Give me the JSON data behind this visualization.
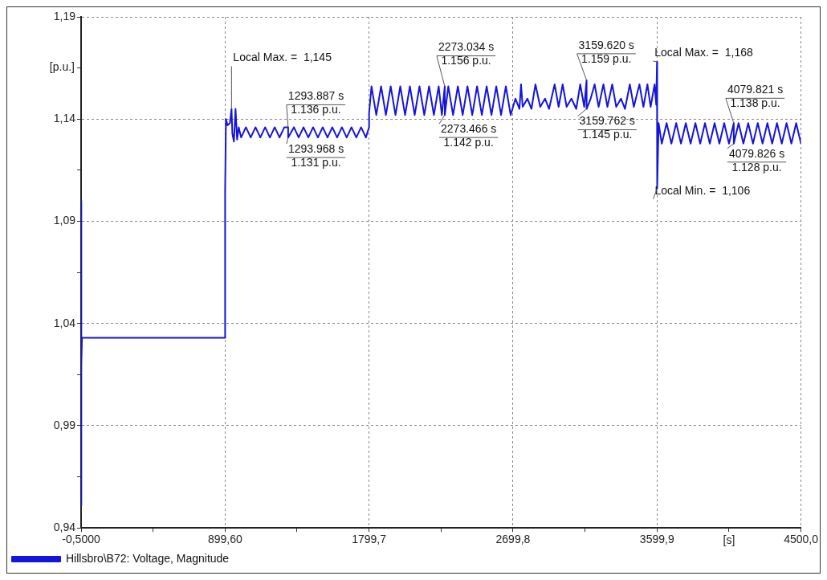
{
  "chart_data": {
    "type": "line",
    "xlabel": "[s]",
    "ylabel": "[p.u.]",
    "legend": "bottom left",
    "grid": true,
    "marker": "none",
    "line_style": "solid",
    "xlim": [
      -0.5,
      4500
    ],
    "xticks": [
      {
        "value": -0.5,
        "label": "-0,5000"
      },
      {
        "value": 449.55,
        "label": null
      },
      {
        "value": 899.6,
        "label": "899,60"
      },
      {
        "value": 1349.65,
        "label": null
      },
      {
        "value": 1799.7,
        "label": "1799,7"
      },
      {
        "value": 2249.75,
        "label": null
      },
      {
        "value": 2699.8,
        "label": "2699,8"
      },
      {
        "value": 3149.85,
        "label": null
      },
      {
        "value": 3599.9,
        "label": "3599,9"
      },
      {
        "value": 4049.95,
        "label": null
      },
      {
        "value": 4500,
        "label": "4500,0"
      }
    ],
    "ylim": [
      0.94,
      1.19
    ],
    "yticks": [
      {
        "value": 0.94,
        "label": "0,94"
      },
      {
        "value": 0.965,
        "label": null
      },
      {
        "value": 0.99,
        "label": "0,99"
      },
      {
        "value": 1.015,
        "label": null
      },
      {
        "value": 1.04,
        "label": "1,04"
      },
      {
        "value": 1.065,
        "label": null
      },
      {
        "value": 1.09,
        "label": "1,09"
      },
      {
        "value": 1.115,
        "label": null
      },
      {
        "value": 1.14,
        "label": "1,14"
      },
      {
        "value": 1.165,
        "label": null
      },
      {
        "value": 1.19,
        "label": "1,19"
      }
    ],
    "annotations": [
      {
        "text": "Local Max. =  1,145",
        "x": 940,
        "y": 1.145
      },
      {
        "text": "1293.887 s\n1.136 p.u.",
        "x": 1293.887,
        "y": 1.136
      },
      {
        "text": "1293.968 s\n1.131 p.u.",
        "x": 1293.968,
        "y": 1.131
      },
      {
        "text": "2273.034 s\n1.156 p.u.",
        "x": 2273.034,
        "y": 1.156
      },
      {
        "text": "2273.466 s\n1.142 p.u.",
        "x": 2273.466,
        "y": 1.142
      },
      {
        "text": "3159.620 s\n1.159 p.u.",
        "x": 3159.62,
        "y": 1.159
      },
      {
        "text": "3159.762 s\n1.145 p.u.",
        "x": 3159.762,
        "y": 1.145
      },
      {
        "text": "Local Max. =  1,168",
        "x": 3599.9,
        "y": 1.168
      },
      {
        "text": "4079.821 s\n1.138 p.u.",
        "x": 4079.821,
        "y": 1.138
      },
      {
        "text": "4079.826 s\n1.128 p.u.",
        "x": 4079.826,
        "y": 1.128
      },
      {
        "text": "Local Min. =  1,106",
        "x": 3601,
        "y": 1.106
      }
    ],
    "series": [
      {
        "name": "Hillsbro\\B72: Voltage, Magnitude",
        "color": "#1414dc",
        "x": [
          -0.5,
          0,
          2,
          5,
          899.6,
          900,
          905,
          915,
          930,
          940,
          945,
          955,
          965,
          975,
          985,
          1000,
          1030,
          1060,
          1090,
          1120,
          1150,
          1180,
          1210,
          1240,
          1270,
          1293.887,
          1293.968,
          1330,
          1360,
          1390,
          1420,
          1450,
          1480,
          1510,
          1540,
          1570,
          1600,
          1630,
          1660,
          1690,
          1720,
          1750,
          1780,
          1799.7,
          1800,
          1815,
          1845,
          1875,
          1905,
          1935,
          1965,
          1995,
          2025,
          2055,
          2085,
          2115,
          2145,
          2175,
          2205,
          2235,
          2255,
          2273.034,
          2273.466,
          2295,
          2325,
          2355,
          2385,
          2415,
          2445,
          2475,
          2505,
          2535,
          2565,
          2595,
          2625,
          2655,
          2685,
          2700,
          2715,
          2740,
          2750,
          2760,
          2790,
          2815,
          2840,
          2870,
          2900,
          2925,
          2960,
          2985,
          3010,
          3035,
          3065,
          3095,
          3120,
          3145,
          3159.62,
          3159.762,
          3185,
          3210,
          3235,
          3265,
          3290,
          3320,
          3345,
          3375,
          3400,
          3430,
          3455,
          3490,
          3515,
          3540,
          3560,
          3585,
          3595,
          3599.9,
          3601,
          3610,
          3630,
          3660,
          3690,
          3720,
          3750,
          3780,
          3810,
          3840,
          3870,
          3900,
          3930,
          3960,
          3990,
          4020,
          4050,
          4079.821,
          4079.826,
          4110,
          4140,
          4170,
          4200,
          4230,
          4260,
          4290,
          4320,
          4350,
          4380,
          4410,
          4440,
          4470,
          4500
        ],
        "values": [
          1.1,
          0.951,
          1.02,
          1.033,
          1.033,
          1.105,
          1.14,
          1.137,
          1.138,
          1.145,
          1.133,
          1.129,
          1.145,
          1.13,
          1.136,
          1.131,
          1.136,
          1.131,
          1.136,
          1.131,
          1.136,
          1.131,
          1.136,
          1.131,
          1.136,
          1.136,
          1.131,
          1.136,
          1.131,
          1.136,
          1.131,
          1.136,
          1.131,
          1.136,
          1.131,
          1.136,
          1.131,
          1.136,
          1.131,
          1.136,
          1.131,
          1.136,
          1.131,
          1.136,
          1.143,
          1.156,
          1.142,
          1.156,
          1.142,
          1.156,
          1.142,
          1.156,
          1.142,
          1.156,
          1.142,
          1.156,
          1.142,
          1.156,
          1.142,
          1.156,
          1.142,
          1.156,
          1.142,
          1.156,
          1.142,
          1.156,
          1.142,
          1.156,
          1.142,
          1.156,
          1.142,
          1.156,
          1.142,
          1.156,
          1.142,
          1.156,
          1.142,
          1.146,
          1.15,
          1.145,
          1.157,
          1.146,
          1.15,
          1.145,
          1.157,
          1.146,
          1.15,
          1.145,
          1.157,
          1.146,
          1.157,
          1.146,
          1.15,
          1.145,
          1.157,
          1.146,
          1.159,
          1.145,
          1.15,
          1.157,
          1.146,
          1.157,
          1.146,
          1.157,
          1.146,
          1.15,
          1.145,
          1.157,
          1.146,
          1.157,
          1.146,
          1.157,
          1.146,
          1.157,
          1.147,
          1.168,
          1.106,
          1.138,
          1.128,
          1.138,
          1.128,
          1.138,
          1.128,
          1.138,
          1.128,
          1.138,
          1.128,
          1.138,
          1.128,
          1.138,
          1.128,
          1.138,
          1.128,
          1.138,
          1.128,
          1.138,
          1.128,
          1.138,
          1.128,
          1.138,
          1.128,
          1.138,
          1.128,
          1.138,
          1.128,
          1.138,
          1.128,
          1.138,
          1.128
        ]
      }
    ]
  }
}
